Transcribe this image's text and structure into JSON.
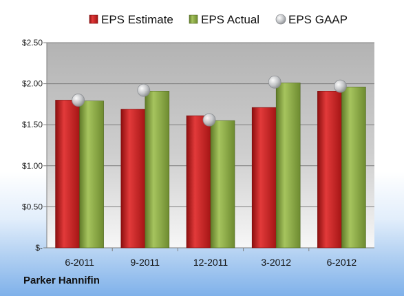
{
  "company_label": "Parker Hannifin",
  "colors": {
    "estimate": "#cc1f1f",
    "actual": "#8cab45",
    "gaap": "#b9bcc0",
    "plot_top": "#b3b3b3",
    "plot_bottom": "#f7f7f7"
  },
  "chart_data": {
    "type": "bar",
    "title": "",
    "xlabel": "",
    "ylabel": "",
    "categories": [
      "6-2011",
      "9-2011",
      "12-2011",
      "3-2012",
      "6-2012"
    ],
    "series": [
      {
        "name": "EPS Estimate",
        "type": "bar",
        "values": [
          1.8,
          1.69,
          1.61,
          1.71,
          1.91
        ]
      },
      {
        "name": "EPS Actual",
        "type": "bar",
        "values": [
          1.79,
          1.91,
          1.55,
          2.01,
          1.96
        ]
      },
      {
        "name": "EPS GAAP",
        "type": "marker",
        "values": [
          1.8,
          1.92,
          1.56,
          2.02,
          1.97
        ]
      }
    ],
    "ylim": [
      0,
      2.5
    ],
    "yticks": [
      0,
      0.5,
      1.0,
      1.5,
      2.0,
      2.5
    ],
    "ytick_labels": [
      "$-",
      "$0.50",
      "$1.00",
      "$1.50",
      "$2.00",
      "$2.50"
    ],
    "grid": true,
    "legend_position": "top"
  }
}
